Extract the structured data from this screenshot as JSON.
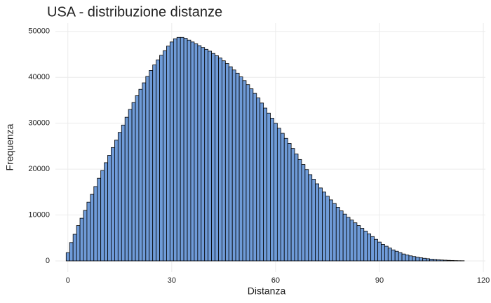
{
  "chart_data": {
    "type": "histogram",
    "title": "USA - distribuzione distanze",
    "x_label": "Distanza",
    "y_label": "Frequenza",
    "bins": [
      -0.5,
      0.5,
      1.5,
      2.5,
      3.5,
      4.5,
      5.5,
      6.5,
      7.5,
      8.5,
      9.5,
      10.5,
      11.5,
      12.5,
      13.5,
      14.5,
      15.5,
      16.5,
      17.5,
      18.5,
      19.5,
      20.5,
      21.5,
      22.5,
      23.5,
      24.5,
      25.5,
      26.5,
      27.5,
      28.5,
      29.5,
      30.5,
      31.5,
      32.5,
      33.5,
      34.5,
      35.5,
      36.5,
      37.5,
      38.5,
      39.5,
      40.5,
      41.5,
      42.5,
      43.5,
      44.5,
      45.5,
      46.5,
      47.5,
      48.5,
      49.5,
      50.5,
      51.5,
      52.5,
      53.5,
      54.5,
      55.5,
      56.5,
      57.5,
      58.5,
      59.5,
      60.5,
      61.5,
      62.5,
      63.5,
      64.5,
      65.5,
      66.5,
      67.5,
      68.5,
      69.5,
      70.5,
      71.5,
      72.5,
      73.5,
      74.5,
      75.5,
      76.5,
      77.5,
      78.5,
      79.5,
      80.5,
      81.5,
      82.5,
      83.5,
      84.5,
      85.5,
      86.5,
      87.5,
      88.5,
      89.5,
      90.5,
      91.5,
      92.5,
      93.5,
      94.5,
      95.5,
      96.5,
      97.5,
      98.5,
      99.5,
      100.5,
      101.5,
      102.5,
      103.5,
      104.5,
      105.5,
      106.5,
      107.5,
      108.5,
      109.5,
      110.5,
      111.5,
      112.5,
      113.5,
      114.5
    ],
    "values": [
      1800,
      4000,
      5800,
      7700,
      9300,
      11000,
      12800,
      14500,
      16200,
      18000,
      19700,
      21400,
      23000,
      24700,
      26300,
      28000,
      29600,
      31300,
      33000,
      34500,
      36000,
      37400,
      38800,
      40200,
      41500,
      42700,
      43800,
      44800,
      45800,
      46800,
      47700,
      48400,
      48700,
      48700,
      48500,
      48100,
      47700,
      47300,
      46900,
      46500,
      46100,
      45700,
      45200,
      44700,
      44200,
      43600,
      43000,
      42300,
      41600,
      40900,
      40100,
      39300,
      38400,
      37500,
      36500,
      35500,
      34400,
      33300,
      32200,
      31100,
      30000,
      28900,
      27800,
      26700,
      25600,
      24500,
      23300,
      22100,
      21000,
      19900,
      18800,
      17800,
      16800,
      15900,
      15000,
      14100,
      13300,
      12500,
      11700,
      10900,
      10200,
      9500,
      8900,
      8300,
      7700,
      7100,
      6500,
      5900,
      5300,
      4700,
      4100,
      3600,
      3200,
      2800,
      2400,
      2100,
      1800,
      1500,
      1300,
      1100,
      950,
      800,
      680,
      570,
      470,
      390,
      320,
      260,
      200,
      160,
      120,
      90,
      60,
      40,
      30
    ],
    "color": "#6f9bd8",
    "edge_color": "#000000",
    "xlim": [
      -3.6,
      120.6
    ],
    "ylim": [
      -2450,
      51800
    ],
    "xticks": [
      0,
      30,
      60,
      90,
      120
    ],
    "yticks": [
      0,
      10000,
      20000,
      30000,
      40000,
      50000
    ],
    "grid": true
  }
}
